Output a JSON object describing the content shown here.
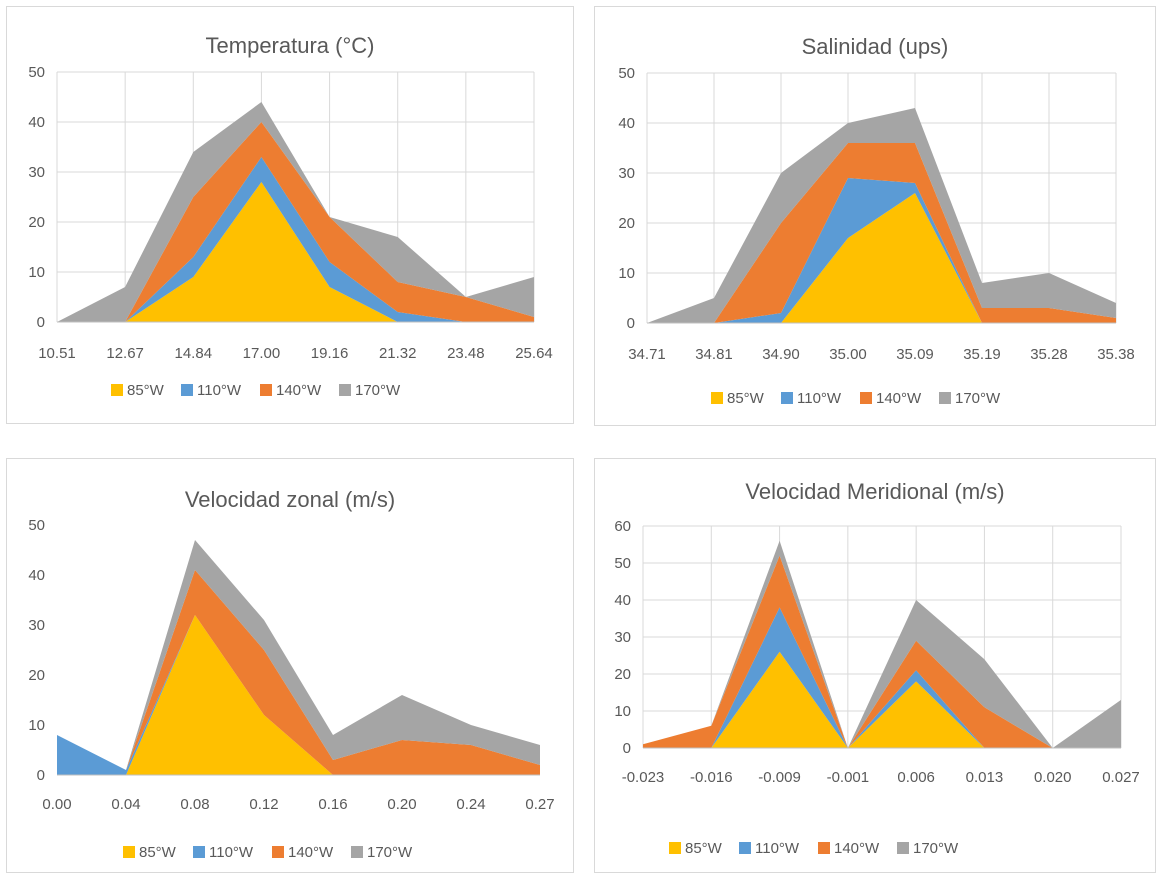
{
  "chart_data": [
    {
      "type": "area",
      "stacked": true,
      "title": "Temperatura (°C)",
      "categories": [
        "10.51",
        "12.67",
        "14.84",
        "17.00",
        "19.16",
        "21.32",
        "23.48",
        "25.64"
      ],
      "ylim": [
        0,
        50
      ],
      "yticks": [
        0,
        10,
        20,
        30,
        40,
        50
      ],
      "grid": true,
      "legend": "bottom",
      "series": [
        {
          "name": "85°W",
          "color": "#FFC000",
          "values": [
            0,
            0,
            9,
            28,
            7,
            0,
            0,
            0
          ]
        },
        {
          "name": "110°W",
          "color": "#5B9BD5",
          "values": [
            0,
            0,
            4,
            5,
            5,
            2,
            0,
            0
          ]
        },
        {
          "name": "140°W",
          "color": "#ED7D31",
          "values": [
            0,
            0,
            12,
            7,
            9,
            6,
            5,
            1
          ]
        },
        {
          "name": "170°W",
          "color": "#A5A5A5",
          "values": [
            0,
            7,
            9,
            4,
            0,
            9,
            0,
            8
          ]
        }
      ]
    },
    {
      "type": "area",
      "stacked": true,
      "title": "Salinidad (ups)",
      "categories": [
        "34.71",
        "34.81",
        "34.90",
        "35.00",
        "35.09",
        "35.19",
        "35.28",
        "35.38"
      ],
      "ylim": [
        0,
        50
      ],
      "yticks": [
        0,
        10,
        20,
        30,
        40,
        50
      ],
      "grid": true,
      "legend": "bottom",
      "series": [
        {
          "name": "85°W",
          "color": "#FFC000",
          "values": [
            0,
            0,
            0,
            17,
            26,
            0,
            0,
            0
          ]
        },
        {
          "name": "110°W",
          "color": "#5B9BD5",
          "values": [
            0,
            0,
            2,
            12,
            2,
            0,
            0,
            0
          ]
        },
        {
          "name": "140°W",
          "color": "#ED7D31",
          "values": [
            0,
            0,
            18,
            7,
            8,
            3,
            3,
            1
          ]
        },
        {
          "name": "170°W",
          "color": "#A5A5A5",
          "values": [
            0,
            5,
            10,
            4,
            7,
            5,
            7,
            3
          ]
        }
      ]
    },
    {
      "type": "area",
      "stacked": true,
      "title": "Velocidad zonal (m/s)",
      "categories": [
        "0.00",
        "0.04",
        "0.08",
        "0.12",
        "0.16",
        "0.20",
        "0.24",
        "0.27"
      ],
      "ylim": [
        0,
        50
      ],
      "yticks": [
        0,
        10,
        20,
        30,
        40,
        50
      ],
      "grid": false,
      "legend": "bottom",
      "series": [
        {
          "name": "85°W",
          "color": "#FFC000",
          "values": [
            0,
            0,
            32,
            12,
            0,
            0,
            0,
            0
          ]
        },
        {
          "name": "110°W",
          "color": "#5B9BD5",
          "values": [
            8,
            1,
            0,
            0,
            0,
            0,
            0,
            0
          ]
        },
        {
          "name": "140°W",
          "color": "#ED7D31",
          "values": [
            0,
            0,
            9,
            13,
            3,
            7,
            6,
            2
          ]
        },
        {
          "name": "170°W",
          "color": "#A5A5A5",
          "values": [
            0,
            0,
            6,
            6,
            5,
            9,
            4,
            4
          ]
        }
      ]
    },
    {
      "type": "area",
      "stacked": true,
      "title": "Velocidad Meridional (m/s)",
      "categories": [
        "-0.023",
        "-0.016",
        "-0.009",
        "-0.001",
        "0.006",
        "0.013",
        "0.020",
        "0.027"
      ],
      "ylim": [
        0,
        60
      ],
      "yticks": [
        0,
        10,
        20,
        30,
        40,
        50,
        60
      ],
      "grid": true,
      "legend": "bottom",
      "series": [
        {
          "name": "85°W",
          "color": "#FFC000",
          "values": [
            0,
            0,
            26,
            0,
            18,
            0,
            0,
            0
          ]
        },
        {
          "name": "110°W",
          "color": "#5B9BD5",
          "values": [
            0,
            0,
            12,
            0,
            3,
            0,
            0,
            0
          ]
        },
        {
          "name": "140°W",
          "color": "#ED7D31",
          "values": [
            1,
            6,
            14,
            0,
            8,
            11,
            0,
            0
          ]
        },
        {
          "name": "170°W",
          "color": "#A5A5A5",
          "values": [
            0,
            0,
            4,
            0,
            11,
            13,
            0,
            13
          ]
        }
      ]
    }
  ]
}
